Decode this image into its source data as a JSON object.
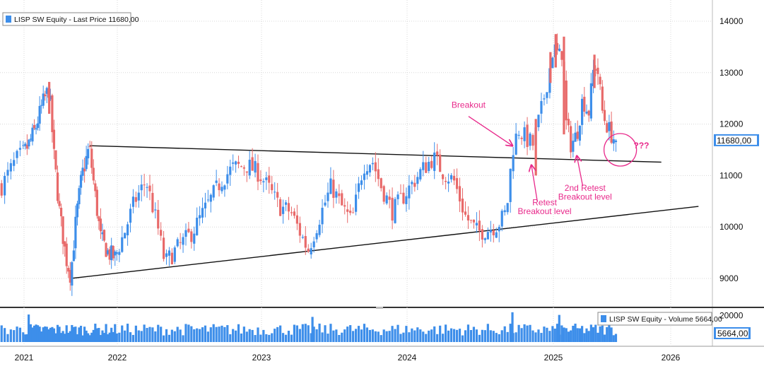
{
  "chart_data": [
    {
      "type": "candlestick",
      "legend": "LISP SW Equity - Last Price 11680,00",
      "last_price_label": "11680,00",
      "last_price": 11680,
      "ylim": [
        8550,
        14350
      ],
      "yticks": [
        9000,
        10000,
        11000,
        12000,
        13000,
        14000
      ],
      "ytick_labels": [
        "9000",
        "10000",
        "11000",
        "12000",
        "13000",
        "14000"
      ],
      "x_years": [
        "2021",
        "2022",
        "2023",
        "2024",
        "2025",
        "2026"
      ],
      "x_year_positions": [
        2021.0,
        2022.0,
        2023.0,
        2024.0,
        2025.0,
        2026.0
      ],
      "x_range": [
        2020.85,
        2026.3
      ],
      "up_color": "#3d8eea",
      "down_color": "#e86a6a",
      "path_points": [
        [
          2020.86,
          10800
        ],
        [
          2020.95,
          11300
        ],
        [
          2021.05,
          11600
        ],
        [
          2021.12,
          11900
        ],
        [
          2021.2,
          12400
        ],
        [
          2021.27,
          12700
        ],
        [
          2021.32,
          11400
        ],
        [
          2021.38,
          10300
        ],
        [
          2021.45,
          9400
        ],
        [
          2021.5,
          9050
        ],
        [
          2021.56,
          10200
        ],
        [
          2021.62,
          11000
        ],
        [
          2021.7,
          11550
        ],
        [
          2021.75,
          10800
        ],
        [
          2021.82,
          9800
        ],
        [
          2021.9,
          9500
        ],
        [
          2021.98,
          9400
        ],
        [
          2022.05,
          9900
        ],
        [
          2022.12,
          10500
        ],
        [
          2022.2,
          10900
        ],
        [
          2022.28,
          10000
        ],
        [
          2022.33,
          9300
        ],
        [
          2022.42,
          9600
        ],
        [
          2022.52,
          9900
        ],
        [
          2022.62,
          10400
        ],
        [
          2022.72,
          10900
        ],
        [
          2022.8,
          11150
        ],
        [
          2022.9,
          11200
        ],
        [
          2022.98,
          11050
        ],
        [
          2023.05,
          10750
        ],
        [
          2023.12,
          10400
        ],
        [
          2023.2,
          10300
        ],
        [
          2023.28,
          9800
        ],
        [
          2023.32,
          9550
        ],
        [
          2023.4,
          10200
        ],
        [
          2023.48,
          10800
        ],
        [
          2023.55,
          10400
        ],
        [
          2023.62,
          10100
        ],
        [
          2023.7,
          11200
        ],
        [
          2023.76,
          11300
        ],
        [
          2023.82,
          10800
        ],
        [
          2023.9,
          10300
        ],
        [
          2024.0,
          10700
        ],
        [
          2024.1,
          11100
        ],
        [
          2024.18,
          11350
        ],
        [
          2024.25,
          11050
        ],
        [
          2024.32,
          10900
        ],
        [
          2024.4,
          10200
        ],
        [
          2024.48,
          9900
        ],
        [
          2024.55,
          9950
        ],
        [
          2024.62,
          10050
        ],
        [
          2024.68,
          10300
        ],
        [
          2024.72,
          11500
        ],
        [
          2024.76,
          11900
        ],
        [
          2024.82,
          11700
        ],
        [
          2024.86,
          11600
        ],
        [
          2024.92,
          12300
        ],
        [
          2024.97,
          13000
        ],
        [
          2025.0,
          13500
        ],
        [
          2025.05,
          13300
        ],
        [
          2025.08,
          13450
        ],
        [
          2025.1,
          12100
        ],
        [
          2025.15,
          11600
        ],
        [
          2025.2,
          11800
        ],
        [
          2025.25,
          12500
        ],
        [
          2025.3,
          12200
        ],
        [
          2025.35,
          13200
        ],
        [
          2025.38,
          13000
        ],
        [
          2025.42,
          12200
        ],
        [
          2025.47,
          11900
        ],
        [
          2025.52,
          11700
        ],
        [
          2025.55,
          11680
        ]
      ],
      "spikes": [
        {
          "x": 2021.27,
          "high": 12820,
          "low": 12200
        },
        {
          "x": 2024.88,
          "high": 12100,
          "low": 11000
        },
        {
          "x": 2024.98,
          "high": 13400,
          "low": 12800
        },
        {
          "x": 2025.02,
          "high": 13750,
          "low": 13100
        },
        {
          "x": 2025.09,
          "high": 13700,
          "low": 11800
        },
        {
          "x": 2025.35,
          "high": 13350,
          "low": 12700
        }
      ],
      "trendlines": [
        {
          "name": "resistance",
          "x": [
            2021.7,
            2025.92
          ],
          "y": [
            11580,
            11260
          ]
        },
        {
          "name": "support",
          "x": [
            2021.5,
            2026.2
          ],
          "y": [
            9000,
            10400
          ]
        }
      ],
      "annotations": [
        {
          "text": "Breakout",
          "x": 2024.42,
          "y": 12320
        },
        {
          "text": "Retest",
          "x": 2024.94,
          "y": 10420
        },
        {
          "text": "Breakout level",
          "x": 2024.94,
          "y": 10250
        },
        {
          "text": "2nd Retest",
          "x": 2025.27,
          "y": 10700
        },
        {
          "text": "Breakout level",
          "x": 2025.27,
          "y": 10530
        },
        {
          "text": "???",
          "x": 2025.75,
          "y": 11530
        }
      ],
      "arrows": [
        {
          "from": [
            2024.42,
            12150
          ],
          "to": [
            2024.72,
            11580
          ]
        },
        {
          "from": [
            2024.89,
            10500
          ],
          "to": [
            2024.85,
            11200
          ]
        },
        {
          "from": [
            2025.25,
            10800
          ],
          "to": [
            2025.2,
            11380
          ]
        }
      ],
      "question_circle": {
        "x": 2025.57,
        "y": 11500
      }
    },
    {
      "type": "bar",
      "legend": "LISP SW Equity - Volume 5664,00",
      "last_volume_label": "5664,00",
      "last_volume": 5664,
      "ylim": [
        0,
        23500
      ],
      "yticks": [
        20000
      ],
      "ytick_labels": [
        "20000"
      ],
      "bar_color": "#3d8eea",
      "spikes": [
        {
          "x": 2024.72,
          "value": 22500
        },
        {
          "x": 2025.05,
          "value": 20500
        },
        {
          "x": 2021.05,
          "value": 20800
        },
        {
          "x": 2023.35,
          "value": 19000
        }
      ]
    }
  ]
}
